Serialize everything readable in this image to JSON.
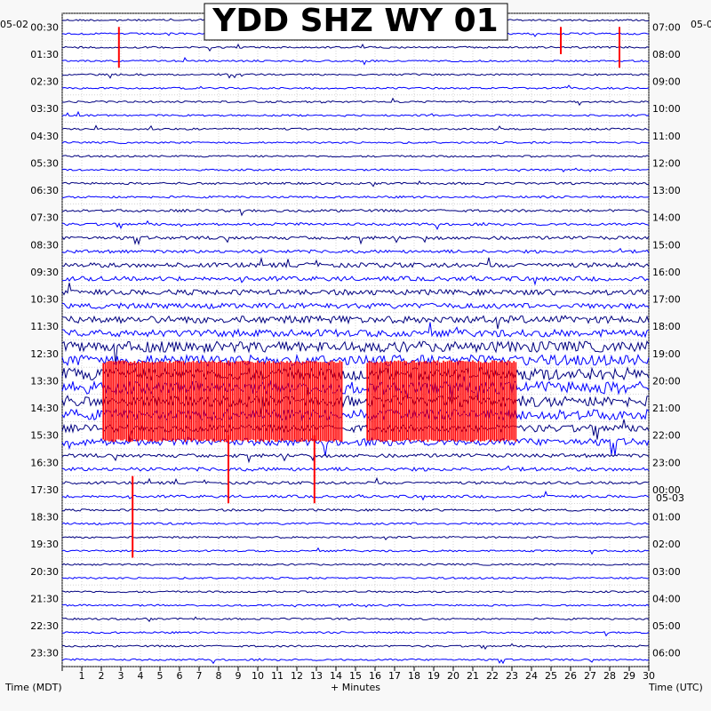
{
  "chart_data": {
    "type": "line",
    "title": "YDD SHZ WY 01",
    "date_left": "05-02",
    "date_right": "05-0",
    "date_right_midday": "05-03",
    "left_axis_label": "Time (MDT)",
    "right_axis_label": "Time (UTC)",
    "xlabel": "+ Minutes",
    "xlim": [
      0,
      30
    ],
    "x_ticks": [
      "1",
      "2",
      "3",
      "4",
      "5",
      "6",
      "7",
      "8",
      "9",
      "10",
      "11",
      "12",
      "13",
      "14",
      "15",
      "16",
      "17",
      "18",
      "19",
      "20",
      "21",
      "22",
      "23",
      "24",
      "25",
      "26",
      "27",
      "28",
      "29",
      "30"
    ],
    "left_hour_labels": [
      "00:30",
      "01:30",
      "02:30",
      "03:30",
      "04:30",
      "05:30",
      "06:30",
      "07:30",
      "08:30",
      "09:30",
      "10:30",
      "11:30",
      "12:30",
      "13:30",
      "14:30",
      "15:30",
      "16:30",
      "17:30",
      "18:30",
      "19:30",
      "20:30",
      "21:30",
      "22:30",
      "23:30"
    ],
    "right_hour_labels": [
      "07:00",
      "08:00",
      "09:00",
      "10:00",
      "11:00",
      "12:00",
      "13:00",
      "14:00",
      "15:00",
      "16:00",
      "17:00",
      "18:00",
      "19:00",
      "20:00",
      "21:00",
      "22:00",
      "23:00",
      "00:00",
      "01:00",
      "02:00",
      "03:00",
      "04:00",
      "05:00",
      "06:00"
    ],
    "trace_count": 48,
    "trace_colors": [
      "#000080",
      "#0000ff"
    ],
    "clip_color": "#ff0000",
    "noise_by_hour": [
      1,
      1,
      1,
      1,
      1,
      1,
      1.2,
      1.4,
      1.8,
      2.5,
      3,
      4,
      6,
      7,
      6,
      4,
      2,
      1.5,
      1.2,
      1,
      1,
      1,
      1,
      1
    ]
  },
  "colors": {
    "background": "#f8f8f8",
    "grid": "#999999",
    "dark_trace": "#000080",
    "light_trace": "#0000ff",
    "clipped": "#ff0000"
  }
}
